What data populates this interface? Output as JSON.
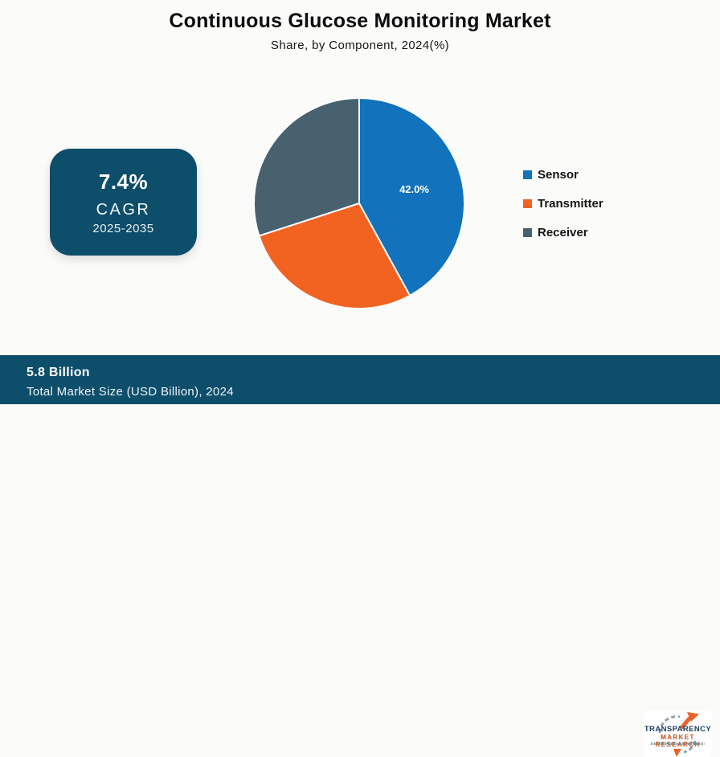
{
  "title": "Continuous Glucose Monitoring Market",
  "subtitle": "Share, by Component, 2024(%)",
  "cagr_card": {
    "value": "7.4%",
    "label": "CAGR",
    "period": "2025-2035",
    "background": "#0d4e6b"
  },
  "chart_data": {
    "type": "pie",
    "title": "Continuous Glucose Monitoring Market Share, by Component, 2024(%)",
    "categories": [
      "Sensor",
      "Transmitter",
      "Receiver"
    ],
    "values": [
      42.0,
      28.0,
      30.0
    ],
    "segments": [
      {
        "label": "Sensor",
        "value": 42.0,
        "color": "#1272bc",
        "data_label": "42.0%"
      },
      {
        "label": "Transmitter",
        "value": 28.0,
        "color": "#f26322",
        "data_label": ""
      },
      {
        "label": "Receiver",
        "value": 30.0,
        "color": "#47626e",
        "data_label": ""
      }
    ],
    "start_angle_deg": 0,
    "direction": "clockwise",
    "slice_border_color": "#ffffff",
    "legend_position": "right",
    "label_color": "#ffffff"
  },
  "footer": {
    "value": "5.8 Billion",
    "caption": "Total Market Size (USD Billion), 2024",
    "background": "#0d4e6b"
  },
  "logo": {
    "line1": "TRANSPARENCY",
    "line2": "MARKET RESEARCH",
    "arrow_color": "#e8622a",
    "dash_color": "#8fa3ab"
  },
  "colors": {
    "background": "#fbfbf9",
    "teal": "#0d4e6b",
    "blue": "#1272bc",
    "orange": "#f26322",
    "slate": "#47626e",
    "text": "#111111"
  }
}
